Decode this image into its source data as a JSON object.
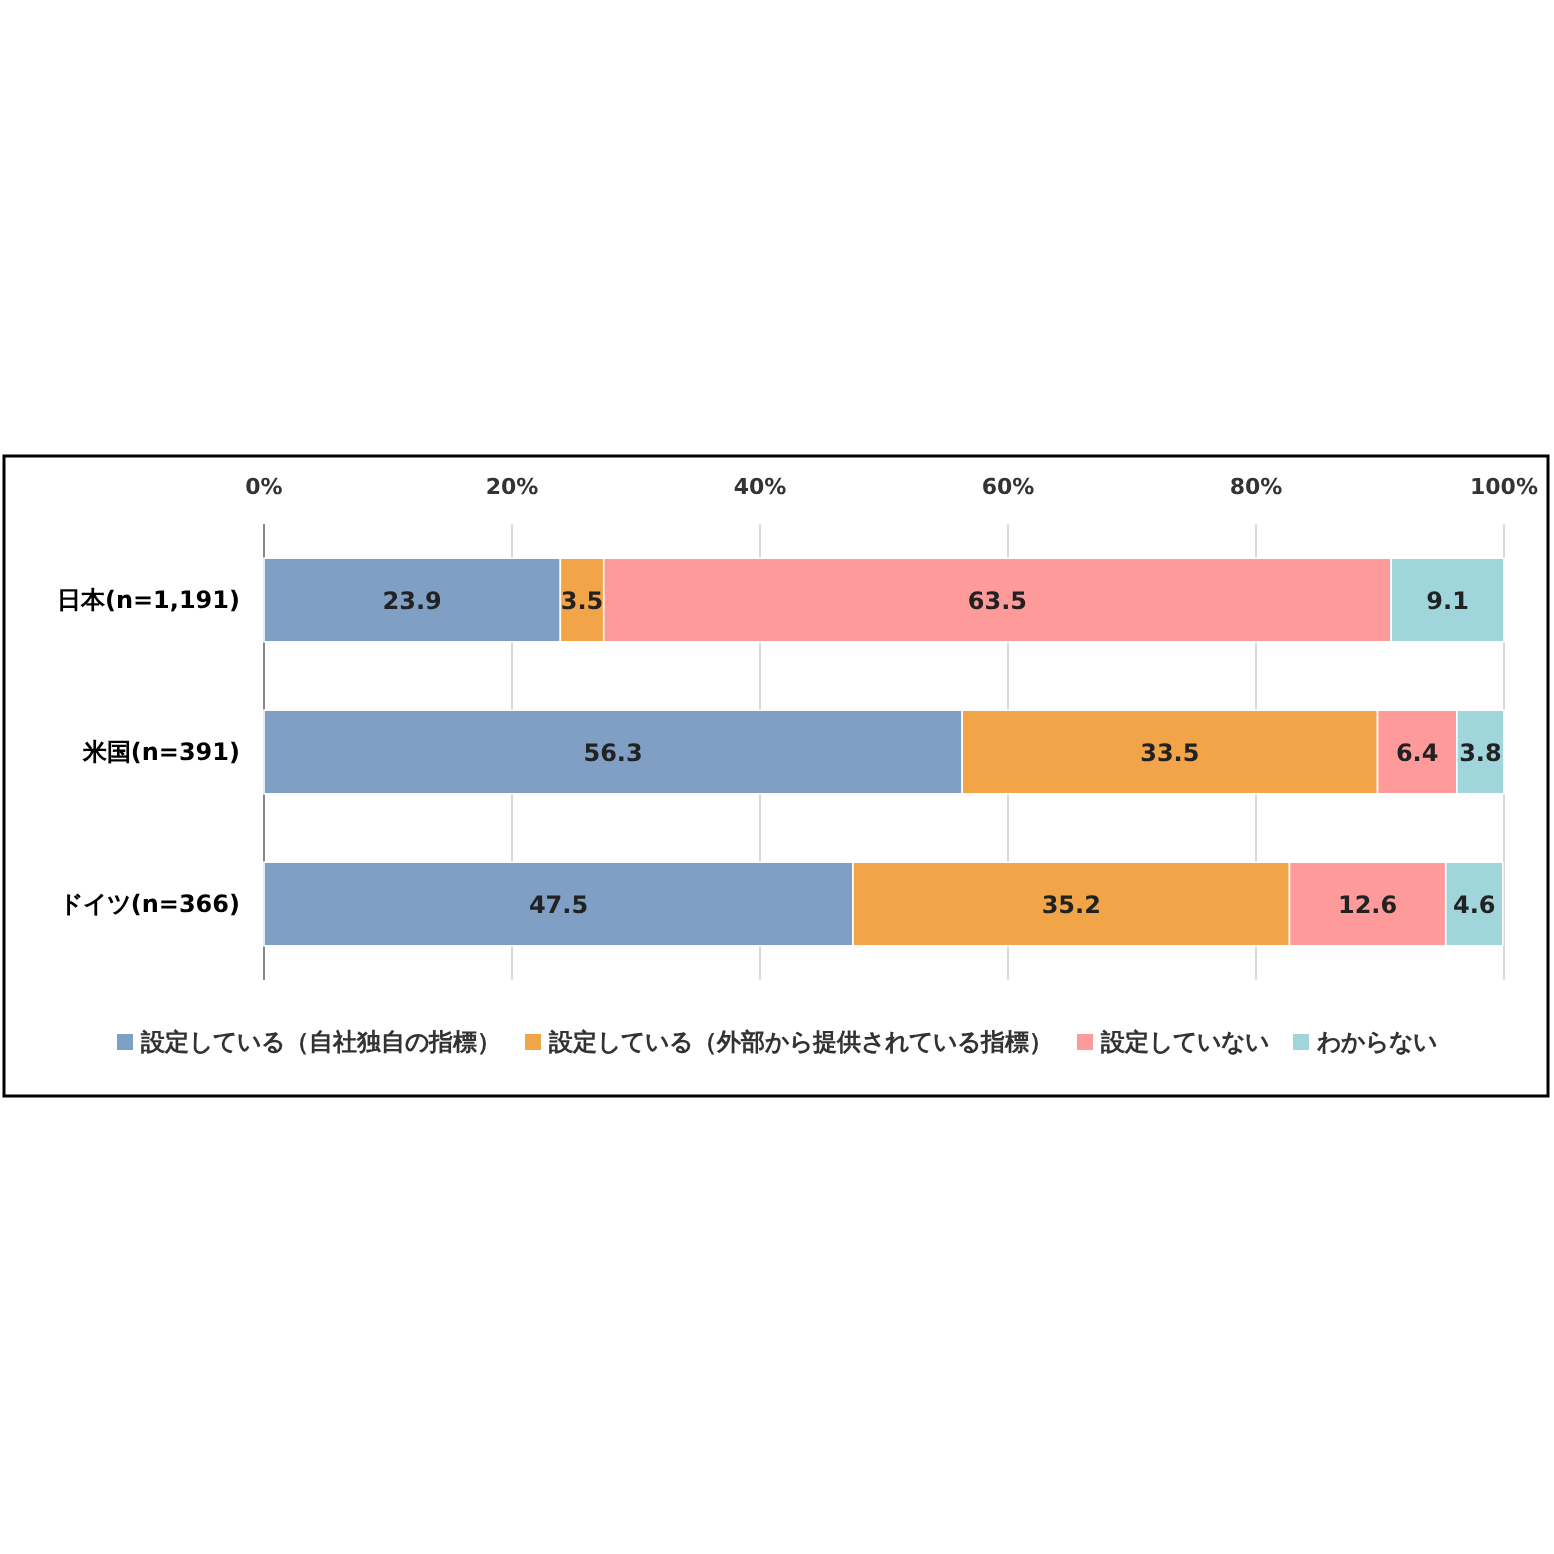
{
  "chart_data": {
    "type": "bar",
    "orientation": "horizontal",
    "stacked": true,
    "data_labels": true,
    "grid": "x",
    "legend": "bottom",
    "categories": [
      "日本(n=1,191)",
      "米国(n=391)",
      "ドイツ(n=366)"
    ],
    "xlim": [
      0,
      100
    ],
    "xticks": [
      {
        "value": 0,
        "label": "0%"
      },
      {
        "value": 20,
        "label": "20%"
      },
      {
        "value": 40,
        "label": "40%"
      },
      {
        "value": 60,
        "label": "60%"
      },
      {
        "value": 80,
        "label": "80%"
      },
      {
        "value": 100,
        "label": "100%"
      }
    ],
    "series": [
      {
        "name": "設定している（自社独自の指標）",
        "color": "#7f9fc5",
        "values": [
          23.9,
          56.3,
          47.5
        ]
      },
      {
        "name": "設定している（外部から提供されている指標）",
        "color": "#f2a449",
        "values": [
          3.5,
          33.5,
          35.2
        ]
      },
      {
        "name": "設定していない",
        "color": "#ff9a9a",
        "values": [
          63.5,
          6.4,
          12.6
        ]
      },
      {
        "name": "わからない",
        "color": "#9fd5db",
        "values": [
          9.1,
          3.8,
          4.6
        ]
      }
    ]
  }
}
